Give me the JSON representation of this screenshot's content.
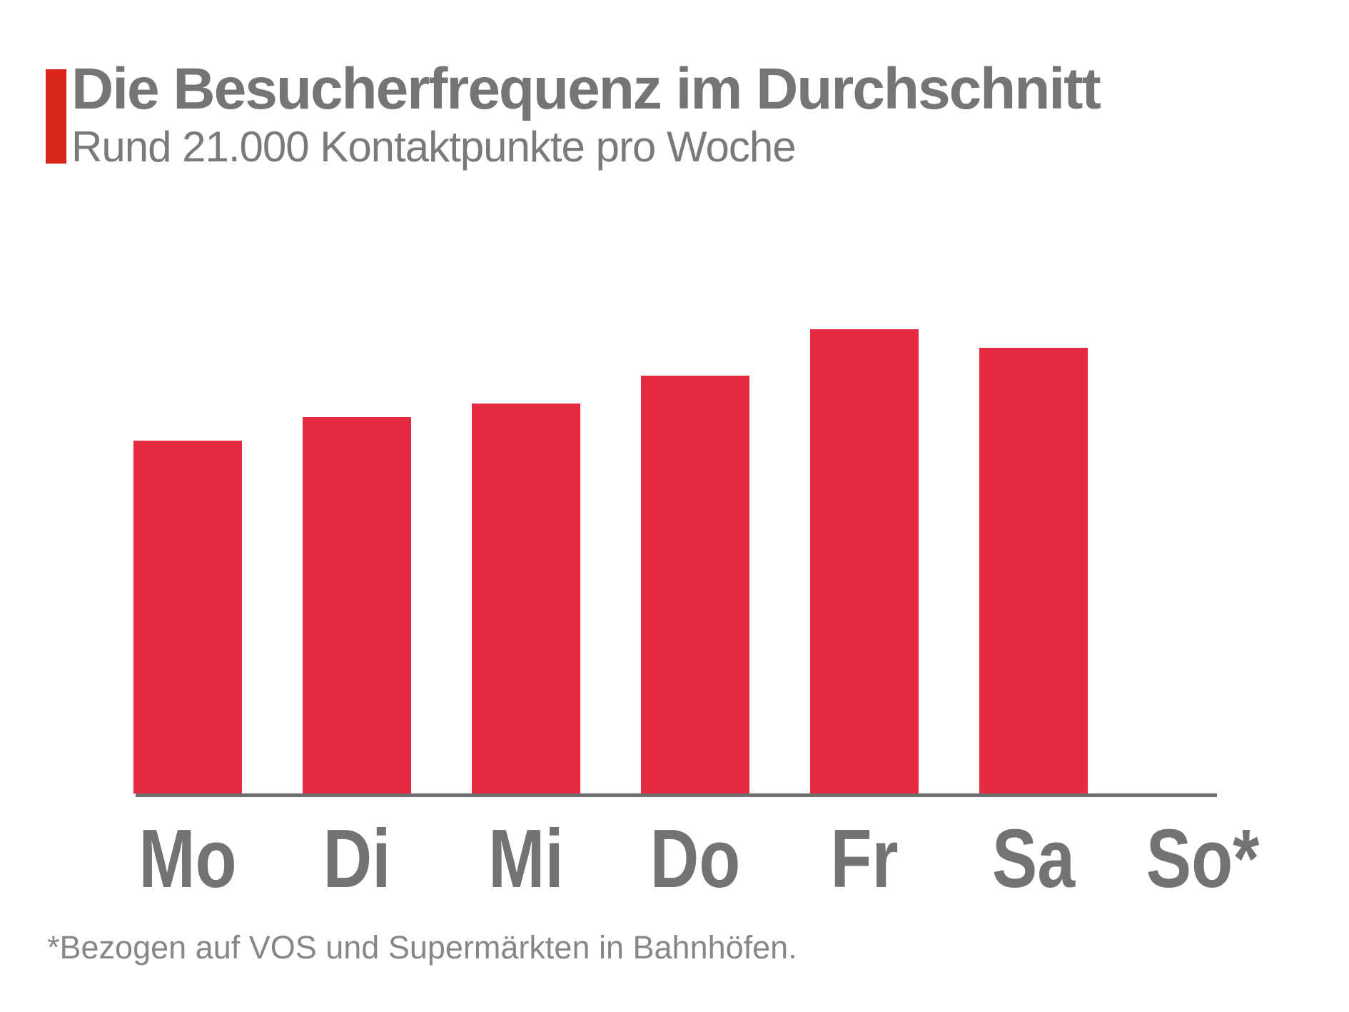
{
  "header": {
    "title": "Die Besucherfrequenz im Durchschnitt",
    "subtitle": "Rund 21.000 Kontaktpunkte pro Woche"
  },
  "footnote": {
    "text": "*Bezogen auf VOS und Supermärkten in Bahnhöfen."
  },
  "colors": {
    "background": "#FFFFFF",
    "accent_bar": "#D9261C",
    "bar": "#E62A42",
    "title_text": "#757575",
    "subtitle_text": "#7A7A7A",
    "day_label_text": "#737373",
    "axis_line": "#6E6E6E",
    "footnote_text": "#878787"
  },
  "chart_data": {
    "type": "bar",
    "title": "Die Besucherfrequenz im Durchschnitt",
    "subtitle": "Rund 21.000 Kontaktpunkte pro Woche",
    "footnote": "*Bezogen auf VOS und Supermärkten in Bahnhöfen.",
    "categories": [
      "Mo",
      "Di",
      "Mi",
      "Do",
      "Fr",
      "Sa",
      "So*"
    ],
    "values": [
      76,
      81,
      84,
      90,
      100,
      96,
      0
    ],
    "units": "percent_of_tallest_bar",
    "xlabel": "",
    "ylabel": "",
    "ylim": [
      0,
      100
    ],
    "grid": false,
    "legend": false,
    "value_labels_shown": false,
    "value_axis_shown": false,
    "bar_color": "#E62A42"
  }
}
